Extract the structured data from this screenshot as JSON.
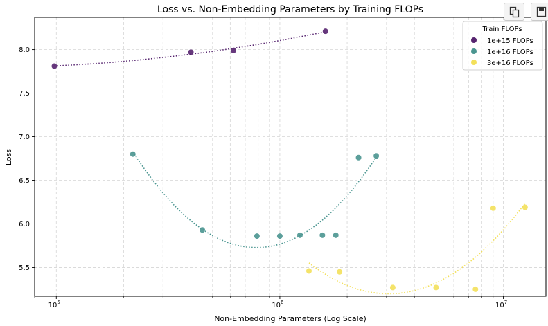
{
  "toolbar": {
    "copy_icon": "copy-icon",
    "save_icon": "save-icon"
  },
  "chart_data": {
    "type": "scatter",
    "title": "Loss vs. Non-Embedding Parameters by Training FLOPs",
    "xlabel": "Non-Embedding Parameters (Log Scale)",
    "ylabel": "Loss",
    "xscale": "log",
    "xlim": [
      80000,
      15500000
    ],
    "ylim": [
      5.17,
      8.37
    ],
    "x_ticks": [
      {
        "value": 100000,
        "base": "10",
        "exp": "5"
      },
      {
        "value": 1000000,
        "base": "10",
        "exp": "6"
      },
      {
        "value": 10000000,
        "base": "10",
        "exp": "7"
      }
    ],
    "y_ticks": [
      "5.5",
      "6.0",
      "6.5",
      "7.0",
      "7.5",
      "8.0"
    ],
    "grid": true,
    "legend": {
      "title": "Train FLOPs",
      "position": "top-right"
    },
    "series": [
      {
        "name": "1e+15 FLOPs",
        "color": "#56246f",
        "points": [
          [
            98000,
            7.81
          ],
          [
            400000,
            7.97
          ],
          [
            620000,
            7.99
          ],
          [
            1600000,
            8.21
          ]
        ],
        "fit": "quadratic-log"
      },
      {
        "name": "1e+16 FLOPs",
        "color": "#4a9590",
        "points": [
          [
            220000,
            6.8
          ],
          [
            450000,
            5.93
          ],
          [
            790000,
            5.86
          ],
          [
            1000000,
            5.86
          ],
          [
            1230000,
            5.87
          ],
          [
            1550000,
            5.87
          ],
          [
            1780000,
            5.87
          ],
          [
            2250000,
            6.76
          ],
          [
            2700000,
            6.78
          ]
        ],
        "fit": "quadratic-log"
      },
      {
        "name": "3e+16 FLOPs",
        "color": "#f3e05a",
        "points": [
          [
            1350000,
            5.46
          ],
          [
            1850000,
            5.45
          ],
          [
            3200000,
            5.27
          ],
          [
            5000000,
            5.27
          ],
          [
            7500000,
            5.25
          ],
          [
            9000000,
            6.18
          ],
          [
            12500000,
            6.19
          ]
        ],
        "fit": "quadratic-log"
      }
    ]
  }
}
